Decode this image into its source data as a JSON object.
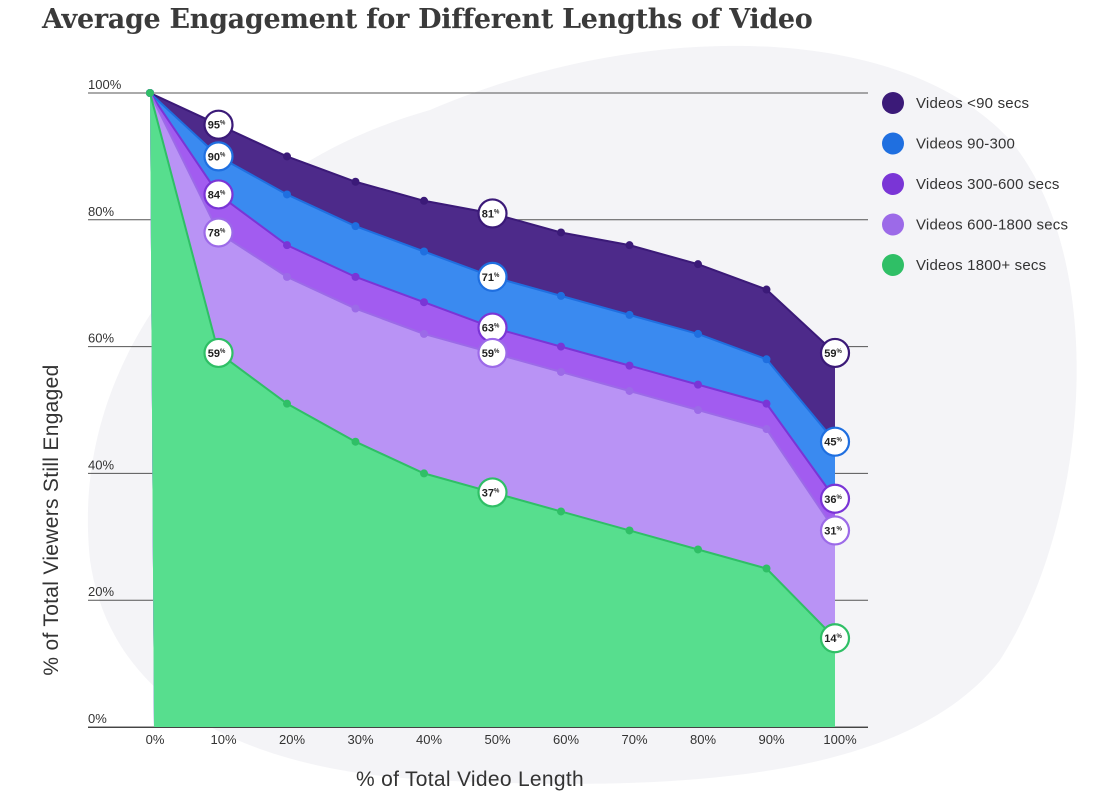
{
  "chart_data": {
    "type": "area",
    "title": "Average Engagement for Different Lengths of Video",
    "xlabel": "% of Total Video Length",
    "ylabel": "% of Total Viewers Still Engaged",
    "categories": [
      "0%",
      "10%",
      "20%",
      "30%",
      "40%",
      "50%",
      "60%",
      "70%",
      "80%",
      "90%",
      "100%"
    ],
    "x": [
      0,
      10,
      20,
      30,
      40,
      50,
      60,
      70,
      80,
      90,
      100
    ],
    "y_ticks": [
      "0%",
      "20%",
      "40%",
      "60%",
      "80%",
      "100%"
    ],
    "y_tick_values": [
      0,
      20,
      40,
      60,
      80,
      100
    ],
    "ylim": [
      0,
      100
    ],
    "xlim": [
      0,
      100
    ],
    "grid": true,
    "legend_position": "top-right",
    "series": [
      {
        "name": "Videos <90 secs",
        "color": "#3b1a78",
        "fill": "#4d2a8a",
        "values": [
          100,
          95,
          90,
          86,
          83,
          81,
          78,
          76,
          73,
          69,
          59
        ]
      },
      {
        "name": "Videos 90-300",
        "color": "#1f6fe0",
        "fill": "#3a8af0",
        "values": [
          100,
          90,
          84,
          79,
          75,
          71,
          68,
          65,
          62,
          58,
          45
        ]
      },
      {
        "name": "Videos 300-600 secs",
        "color": "#7a35d6",
        "fill": "#a25cf0",
        "values": [
          100,
          84,
          76,
          71,
          67,
          63,
          60,
          57,
          54,
          51,
          36
        ]
      },
      {
        "name": "Videos 600-1800 secs",
        "color": "#9c6ae8",
        "fill": "#b993f5",
        "values": [
          100,
          78,
          71,
          66,
          62,
          59,
          56,
          53,
          50,
          47,
          31
        ]
      },
      {
        "name": "Videos 1800+ secs",
        "color": "#2fbf66",
        "fill": "#57de8e",
        "values": [
          100,
          59,
          51,
          45,
          40,
          37,
          34,
          31,
          28,
          25,
          14
        ]
      }
    ],
    "annotations": [
      {
        "series": 0,
        "x": 10,
        "label": "95",
        "suffix": "%"
      },
      {
        "series": 1,
        "x": 10,
        "label": "90",
        "suffix": "%"
      },
      {
        "series": 2,
        "x": 10,
        "label": "84",
        "suffix": "%"
      },
      {
        "series": 3,
        "x": 10,
        "label": "78",
        "suffix": "%"
      },
      {
        "series": 4,
        "x": 10,
        "label": "59",
        "suffix": "%"
      },
      {
        "series": 0,
        "x": 50,
        "label": "81",
        "suffix": "%"
      },
      {
        "series": 1,
        "x": 50,
        "label": "71",
        "suffix": "%"
      },
      {
        "series": 2,
        "x": 50,
        "label": "63",
        "suffix": "%"
      },
      {
        "series": 3,
        "x": 50,
        "label": "59",
        "suffix": "%"
      },
      {
        "series": 4,
        "x": 50,
        "label": "37",
        "suffix": "%"
      },
      {
        "series": 0,
        "x": 100,
        "label": "59",
        "suffix": "%"
      },
      {
        "series": 1,
        "x": 100,
        "label": "45",
        "suffix": "%"
      },
      {
        "series": 2,
        "x": 100,
        "label": "36",
        "suffix": "%"
      },
      {
        "series": 3,
        "x": 100,
        "label": "31",
        "suffix": "%"
      },
      {
        "series": 4,
        "x": 100,
        "label": "14",
        "suffix": "%"
      }
    ]
  }
}
